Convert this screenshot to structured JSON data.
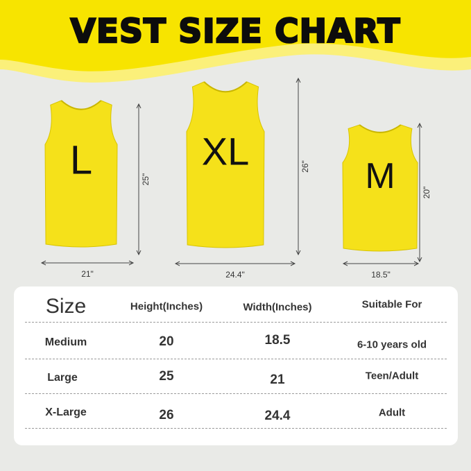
{
  "title": "VEST SIZE CHART",
  "colors": {
    "banner": "#f7e400",
    "vest": "#f5e11a",
    "background": "#e9eae7"
  },
  "vests": [
    {
      "letter": "L",
      "height": "25\"",
      "width": "21\""
    },
    {
      "letter": "XL",
      "height": "26\"",
      "width": "24.4\""
    },
    {
      "letter": "M",
      "height": "20\"",
      "width": "18.5\""
    }
  ],
  "table": {
    "headers": [
      "Size",
      "Height(Inches)",
      "Width(Inches)",
      "Suitable For"
    ],
    "rows": [
      [
        "Medium",
        "20",
        "18.5",
        "6-10 years old"
      ],
      [
        "Large",
        "25",
        "21",
        "Teen/Adult"
      ],
      [
        "X-Large",
        "26",
        "24.4",
        "Adult"
      ]
    ]
  }
}
